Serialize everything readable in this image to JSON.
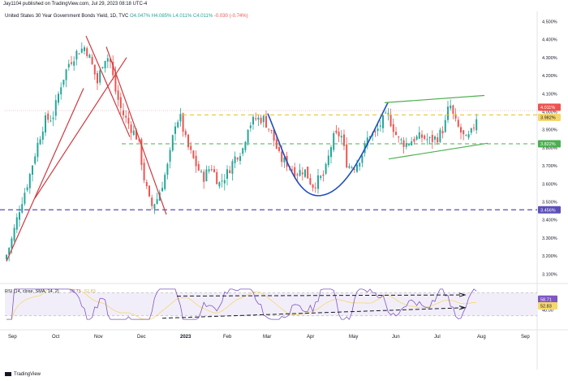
{
  "header": {
    "published": "Jay1104 published on TradingView.com, Jul 29, 2023 08:18 UTC-4"
  },
  "legend": {
    "symbol": "United States 30 Year Government Bonds Yield, 1D, TVC",
    "o": "O4.047%",
    "h": "H4.085%",
    "l": "L4.011%",
    "c": "C4.011%",
    "chg": "-0.030 (-0.74%)"
  },
  "rsi_legend": {
    "label": "RSI (14, close, SMA, 14, 2)",
    "value": "58.71",
    "value2": "52.83"
  },
  "footer": {
    "brand": "TradingView"
  },
  "colors": {
    "up": "#26a69a",
    "down": "#ef5350",
    "rsi": "#7e57c2",
    "rsi_ma": "#f5d76e",
    "green_line": "#4caf50",
    "yellow_line": "#e6c229",
    "purple_line": "#5b4fb8",
    "blue_curve": "#1e4fbf",
    "red_line": "#d0393f"
  },
  "chart_data": {
    "type": "candlestick",
    "title": "United States 30 Year Government Bonds Yield, 1D, TVC",
    "y_axis": {
      "ticks": [
        "4.500%",
        "4.400%",
        "4.300%",
        "4.200%",
        "4.100%",
        "4.000%",
        "3.900%",
        "3.800%",
        "3.700%",
        "3.600%",
        "3.500%",
        "3.400%",
        "3.300%",
        "3.200%",
        "3.100%"
      ],
      "ylim": [
        3.07,
        4.52
      ]
    },
    "x_axis": {
      "ticks": [
        "Sep",
        "Oct",
        "Nov",
        "Dec",
        "2023",
        "Feb",
        "Mar",
        "Apr",
        "May",
        "Jun",
        "Jul",
        "Aug",
        "Sep"
      ]
    },
    "levels": [
      {
        "label": "4.011%",
        "value": 4.011,
        "color": "#ef5350"
      },
      {
        "label": "3.982%",
        "value": 3.982,
        "color": "#f5d76e"
      },
      {
        "label": "3.822%",
        "value": 3.822,
        "color": "#4caf50"
      },
      {
        "label": "3.456%",
        "value": 3.456,
        "color": "#5b4fb8"
      }
    ],
    "rsi": {
      "ticks": [
        "60.00",
        "40.00"
      ],
      "labels": [
        "58.71",
        "52.83"
      ],
      "ylim": [
        20,
        80
      ]
    },
    "ohlc_note": "close path sampled at key turning points; mark set generated from it"
  }
}
